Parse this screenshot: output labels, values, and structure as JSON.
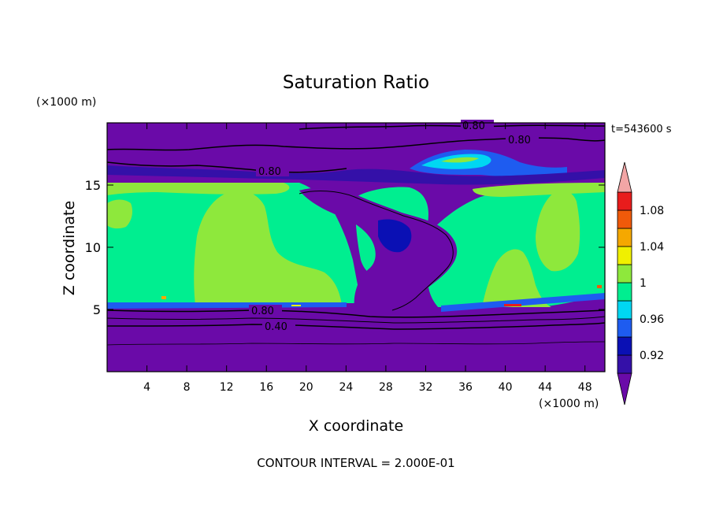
{
  "chart_data": {
    "type": "heatmap",
    "title": "Saturation Ratio",
    "xlabel": "X coordinate",
    "ylabel": "Z coordinate",
    "x_unit": "(×1000 m)",
    "y_unit": "(×1000 m)",
    "time_label": "t=543600 s",
    "footer": "CONTOUR INTERVAL = 2.000E-01",
    "xlim": [
      0,
      50
    ],
    "ylim": [
      0,
      20
    ],
    "x_ticks": [
      "4",
      "8",
      "12",
      "16",
      "20",
      "24",
      "28",
      "32",
      "36",
      "40",
      "44",
      "48"
    ],
    "x_tick_values": [
      4,
      8,
      12,
      16,
      20,
      24,
      28,
      32,
      36,
      40,
      44,
      48
    ],
    "y_ticks": [
      "5",
      "10",
      "15"
    ],
    "y_tick_values": [
      5,
      10,
      15
    ],
    "colorbar": {
      "colors": [
        "#6a0aa8",
        "#3410a8",
        "#0a10b4",
        "#1e5cf0",
        "#00d7f2",
        "#00ee90",
        "#8ee83c",
        "#f0f000",
        "#f5a800",
        "#f05a0a",
        "#e81c1c",
        "#f2a5a5"
      ],
      "tick_labels": [
        "0.92",
        "0.96",
        "1",
        "1.04",
        "1.08"
      ],
      "tick_values": [
        0.92,
        0.96,
        1.0,
        1.04,
        1.08
      ],
      "bounds": [
        0.9,
        0.92,
        0.94,
        0.96,
        0.98,
        1.0,
        1.02,
        1.04,
        1.06,
        1.08,
        1.1
      ]
    },
    "contour_lines": [
      {
        "level": "0.80",
        "z_at_label": 19.8,
        "x_at_label": 37
      },
      {
        "level": "0.80",
        "z_at_label": 18.6,
        "x_at_label": 41
      },
      {
        "level": "0.80",
        "z_at_label": 16.0,
        "x_at_label": 16.5
      },
      {
        "level": "0.80",
        "z_at_label": 4.9,
        "x_at_label": 16
      },
      {
        "level": "0.40",
        "z_at_label": 3.6,
        "x_at_label": 17
      }
    ],
    "regions": {
      "background_level": 0.91,
      "cloud_layer_z": [
        5.2,
        15.2
      ],
      "cloud_layer_level": 0.99,
      "supersaturated_level": 1.01
    }
  }
}
